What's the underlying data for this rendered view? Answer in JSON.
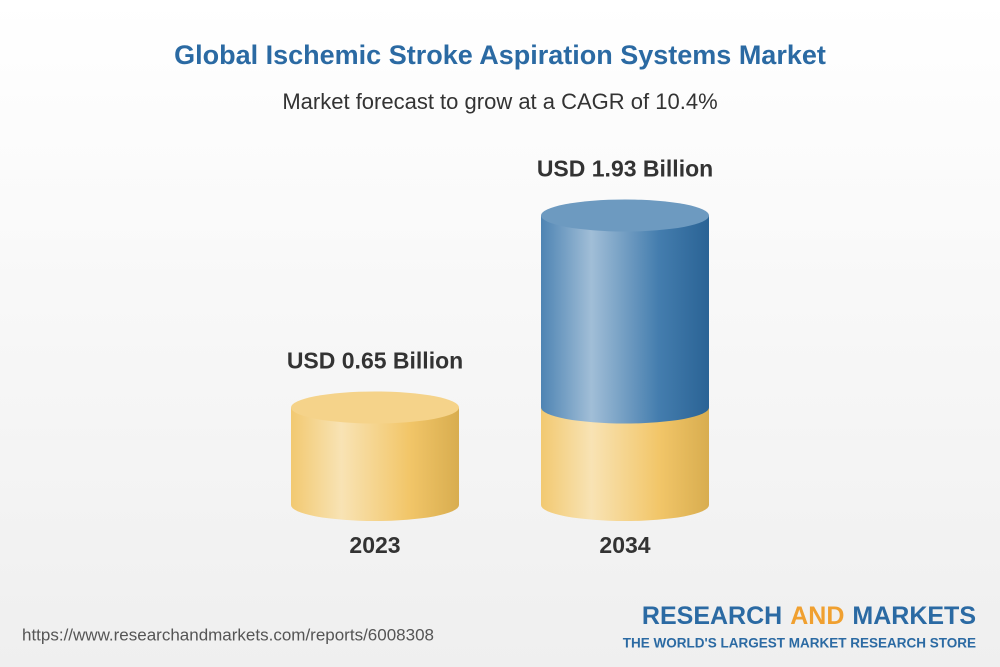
{
  "chart_data": {
    "type": "cylinder",
    "title": "Global Ischemic Stroke Aspiration Systems Market",
    "subtitle": "Market forecast to grow at a CAGR of 10.4%",
    "categories": [
      "2023",
      "2034"
    ],
    "values": [
      0.65,
      1.93
    ],
    "value_labels": [
      "USD 0.65 Billion",
      "USD 1.93 Billion"
    ],
    "colors": [
      "#f0c058",
      "#2f6ea5"
    ]
  },
  "footer": {
    "url": "https://www.researchandmarkets.com/reports/6008308",
    "brand": [
      "RESEARCH",
      "AND",
      "MARKETS"
    ],
    "tagline": "THE WORLD'S LARGEST MARKET RESEARCH STORE"
  }
}
